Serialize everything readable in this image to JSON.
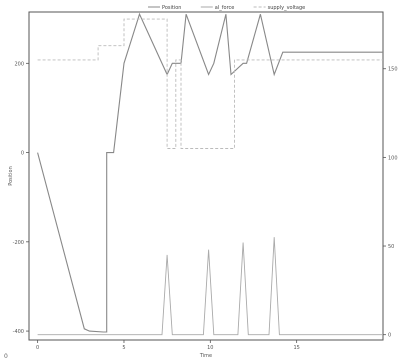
{
  "chart_data": {
    "type": "line",
    "xlabel": "Time",
    "ylabel_left": "Position",
    "x_ticks": [
      "0",
      "5",
      "10",
      "15"
    ],
    "y_left_ticks": [
      "-400",
      "-200",
      "0",
      "200"
    ],
    "y_right_ticks": [
      "0",
      "50",
      "100",
      "150"
    ],
    "xlim": [
      -0.5,
      20
    ],
    "ylim_left": [
      -420,
      315
    ],
    "ylim_right": [
      -3,
      182
    ],
    "grid": false,
    "legend_position": "top-center",
    "corner_label": "0",
    "series": [
      {
        "name": "Position",
        "axis": "left",
        "color": "#888888",
        "style": "solid",
        "x": [
          0,
          2.7,
          3.0,
          3.8,
          4.0,
          4.0,
          4.4,
          5.0,
          5.9,
          7.5,
          7.8,
          8.3,
          8.6,
          9.9,
          10.2,
          10.9,
          11.2,
          11.9,
          12.1,
          12.9,
          13.7,
          14.2,
          20
        ],
        "y": [
          0,
          -395,
          -400,
          -402,
          -402,
          0,
          0,
          200,
          310,
          175,
          200,
          200,
          310,
          175,
          200,
          310,
          175,
          200,
          200,
          310,
          175,
          225,
          225
        ]
      },
      {
        "name": "al_force",
        "axis": "right",
        "color": "#aaaaaa",
        "style": "solid",
        "x": [
          0,
          7.2,
          7.5,
          7.8,
          9.6,
          9.9,
          10.2,
          11.6,
          11.9,
          12.2,
          13.4,
          13.7,
          14.0,
          20
        ],
        "y": [
          0,
          0,
          45,
          0,
          0,
          48,
          0,
          0,
          52,
          0,
          0,
          55,
          0,
          0
        ]
      },
      {
        "name": "supply_voltage",
        "axis": "right",
        "color": "#bbbbbb",
        "style": "dashed",
        "x": [
          0,
          3.5,
          3.5,
          5.0,
          5.0,
          7.5,
          7.5,
          8.0,
          8.0,
          8.3,
          8.3,
          11.4,
          11.4,
          20
        ],
        "y": [
          155,
          155,
          163,
          163,
          178,
          178,
          105,
          105,
          155,
          155,
          105,
          105,
          155,
          155
        ]
      }
    ]
  }
}
